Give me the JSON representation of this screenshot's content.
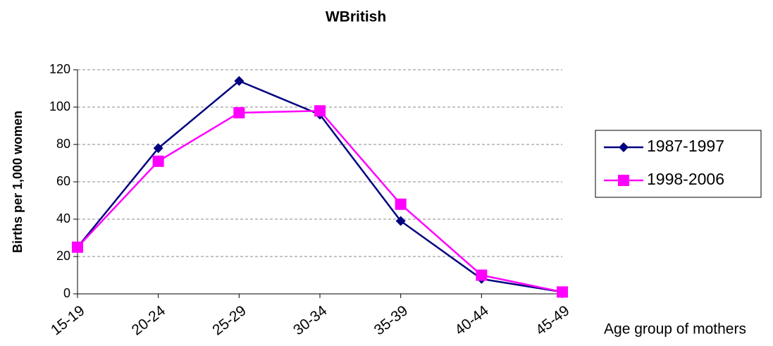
{
  "chart_data": {
    "type": "line",
    "title": "WBritish",
    "x_label": "Age group of mothers",
    "y_label": "Births per 1,000 women",
    "categories": [
      "15-19",
      "20-24",
      "25-29",
      "30-34",
      "35-39",
      "40-44",
      "45-49"
    ],
    "series": [
      {
        "name": "1987-1997",
        "color": "#000080",
        "marker": "diamond",
        "values": [
          25,
          78,
          114,
          96,
          39,
          8,
          1
        ]
      },
      {
        "name": "1998-2006",
        "color": "#ff00ff",
        "marker": "square",
        "values": [
          25,
          71,
          97,
          98,
          48,
          10,
          1
        ]
      }
    ],
    "ylim": [
      0,
      120
    ],
    "yticks": [
      0,
      20,
      40,
      60,
      80,
      100,
      120
    ],
    "grid": true,
    "legend": "right"
  }
}
